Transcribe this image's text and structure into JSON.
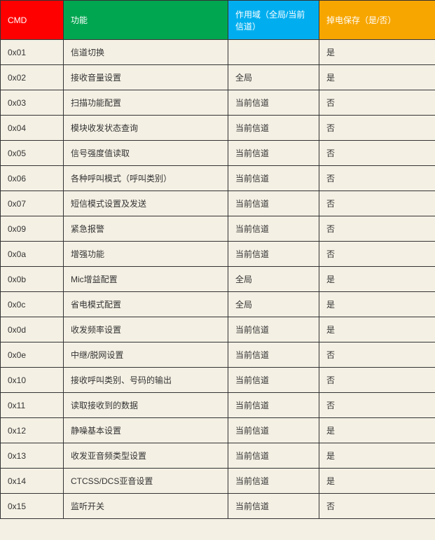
{
  "table": {
    "columns": [
      {
        "label": "CMD",
        "class": "th-cmd",
        "width_class": "col-cmd"
      },
      {
        "label": "功能",
        "class": "th-func",
        "width_class": "col-func"
      },
      {
        "label": "作用域（全局/当前信道）",
        "class": "th-scope",
        "width_class": "col-scope"
      },
      {
        "label": "掉电保存（是/否）",
        "class": "th-save",
        "width_class": "col-save"
      }
    ],
    "rows": [
      {
        "cmd": "0x01",
        "func": "信道切换",
        "scope": "",
        "save": "是"
      },
      {
        "cmd": "0x02",
        "func": "接收音量设置",
        "scope": "全局",
        "save": "是"
      },
      {
        "cmd": "0x03",
        "func": "扫描功能配置",
        "scope": "当前信道",
        "save": "否"
      },
      {
        "cmd": "0x04",
        "func": "模块收发状态查询",
        "scope": "当前信道",
        "save": "否"
      },
      {
        "cmd": "0x05",
        "func": "信号强度值读取",
        "scope": "当前信道",
        "save": "否"
      },
      {
        "cmd": "0x06",
        "func": "各种呼叫模式（呼叫类别）",
        "scope": "当前信道",
        "save": "否"
      },
      {
        "cmd": "0x07",
        "func": "短信模式设置及发送",
        "scope": "当前信道",
        "save": "否"
      },
      {
        "cmd": "0x09",
        "func": "紧急报警",
        "scope": "当前信道",
        "save": "否"
      },
      {
        "cmd": "0x0a",
        "func": "增强功能",
        "scope": "当前信道",
        "save": "否"
      },
      {
        "cmd": "0x0b",
        "func": "Mic增益配置",
        "scope": "全局",
        "save": "是"
      },
      {
        "cmd": "0x0c",
        "func": "省电模式配置",
        "scope": "全局",
        "save": "是"
      },
      {
        "cmd": "0x0d",
        "func": "收发频率设置",
        "scope": "当前信道",
        "save": "是"
      },
      {
        "cmd": "0x0e",
        "func": "中继/脱网设置",
        "scope": "当前信道",
        "save": "否"
      },
      {
        "cmd": "0x10",
        "func": "接收呼叫类别、号码的输出",
        "scope": "当前信道",
        "save": "否"
      },
      {
        "cmd": "0x11",
        "func": "读取接收到的数据",
        "scope": "当前信道",
        "save": "否"
      },
      {
        "cmd": "0x12",
        "func": "静噪基本设置",
        "scope": "当前信道",
        "save": "是"
      },
      {
        "cmd": "0x13",
        "func": "收发亚音频类型设置",
        "scope": "当前信道",
        "save": "是"
      },
      {
        "cmd": "0x14",
        "func": "CTCSS/DCS亚音设置",
        "scope": "当前信道",
        "save": "是"
      },
      {
        "cmd": "0x15",
        "func": "监听开关",
        "scope": "当前信道",
        "save": "否"
      }
    ],
    "header_colors": {
      "cmd": "#ff0000",
      "func": "#00a650",
      "scope": "#00aeef",
      "save": "#f7a600"
    },
    "body_background": "#f4f0e4",
    "border_color": "#333333",
    "font_size": 12
  }
}
